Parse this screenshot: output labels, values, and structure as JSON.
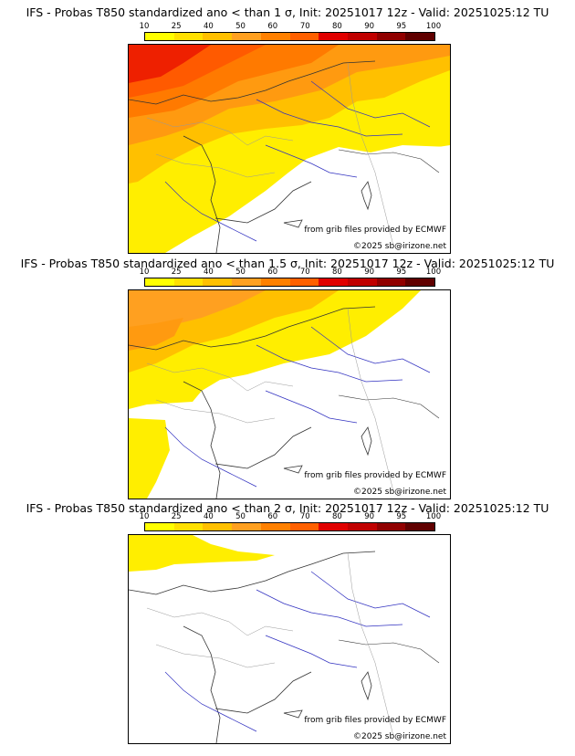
{
  "colorbar": {
    "labels": [
      "10",
      "25",
      "40",
      "50",
      "60",
      "70",
      "80",
      "90",
      "95",
      "100"
    ],
    "colors": [
      "#ffff00",
      "#ffe000",
      "#ffc000",
      "#ffa020",
      "#ff8000",
      "#ff6000",
      "#e00000",
      "#c00000",
      "#900000",
      "#600000"
    ]
  },
  "panels": [
    {
      "title": "IFS - Probas T850  standardized ano < than 1 σ, Init: 20251017 12z - Valid: 20251025:12 TU"
    },
    {
      "title": "IFS - Probas T850  standardized ano < than 1.5 σ, Init: 20251017 12z - Valid: 20251025:12 TU"
    },
    {
      "title": "IFS - Probas T850  standardized ano < than 2 σ, Init: 20251017 12z - Valid: 20251025:12 TU"
    }
  ],
  "credits": {
    "source": "from grib files provided by ECMWF",
    "copyright": "©2025 sb@irizone.net"
  }
}
